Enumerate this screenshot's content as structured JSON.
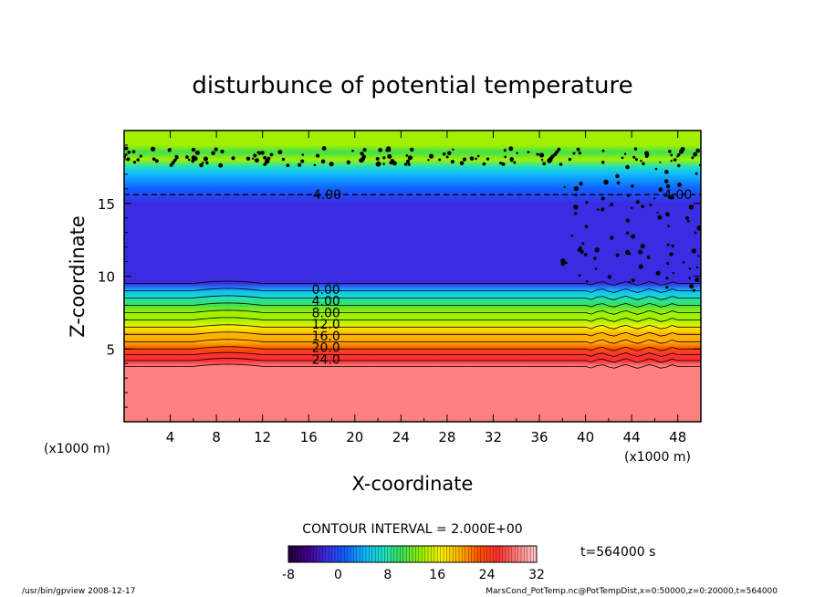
{
  "chart_data": {
    "type": "heatmap",
    "title": "disturbunce of potential temperature",
    "xlabel": "X-coordinate",
    "ylabel": "Z-coordinate",
    "x_unit_left": "(x1000 m)",
    "x_unit_right": "(x1000 m)",
    "xlim": [
      0,
      50
    ],
    "ylim": [
      0,
      20
    ],
    "xticks": [
      4,
      8,
      12,
      16,
      20,
      24,
      28,
      32,
      36,
      40,
      44,
      48
    ],
    "yticks": [
      5,
      10,
      15
    ],
    "contour_interval_text": "CONTOUR INTERVAL = 2.000E+00",
    "time_label": "t=564000 s",
    "colorbar": {
      "min": -8,
      "max": 32,
      "ticks": [
        -8,
        0,
        8,
        16,
        24,
        32
      ],
      "colors": [
        "#1a0030",
        "#40008a",
        "#3a2ce0",
        "#1060ff",
        "#10b8ff",
        "#20e0c0",
        "#40e050",
        "#a0f000",
        "#f8f000",
        "#ffb000",
        "#ff5000",
        "#ff3030",
        "#ff8080",
        "#ffc8c8"
      ]
    },
    "profile_z": [
      0,
      1,
      2,
      3,
      3.8,
      4.2,
      4.6,
      5.0,
      5.5,
      6.0,
      6.5,
      7.0,
      7.5,
      8.0,
      8.5,
      9.0,
      9.5,
      12,
      15,
      16,
      17,
      17.5,
      18,
      18.5,
      19,
      20
    ],
    "profile_value": [
      29,
      28,
      28,
      28,
      28,
      26,
      24,
      22,
      20,
      18,
      16,
      14,
      12,
      10,
      8,
      4,
      0,
      -1,
      -1,
      2,
      6,
      8,
      14,
      10,
      12,
      12
    ],
    "contour_labels": [
      {
        "text": "0.00",
        "x": 17.5,
        "z": 9.1
      },
      {
        "text": "4.00",
        "x": 17.5,
        "z": 8.3
      },
      {
        "text": "8.00",
        "x": 17.5,
        "z": 7.5
      },
      {
        "text": "12.0",
        "x": 17.5,
        "z": 6.7
      },
      {
        "text": "16.0",
        "x": 17.5,
        "z": 5.9
      },
      {
        "text": "20.0",
        "x": 17.5,
        "z": 5.1
      },
      {
        "text": "24.0",
        "x": 17.5,
        "z": 4.3
      },
      {
        "text": "4.00",
        "x": 17.6,
        "z": 15.6
      },
      {
        "text": "4.00",
        "x": 48.0,
        "z": 15.6
      }
    ],
    "dashed_contour_z": 15.6
  },
  "footer": {
    "left": "/usr/bin/gpview   2008-12-17",
    "right": "MarsCond_PotTemp.nc@PotTempDist,x=0:50000,z=0:20000,t=564000"
  }
}
